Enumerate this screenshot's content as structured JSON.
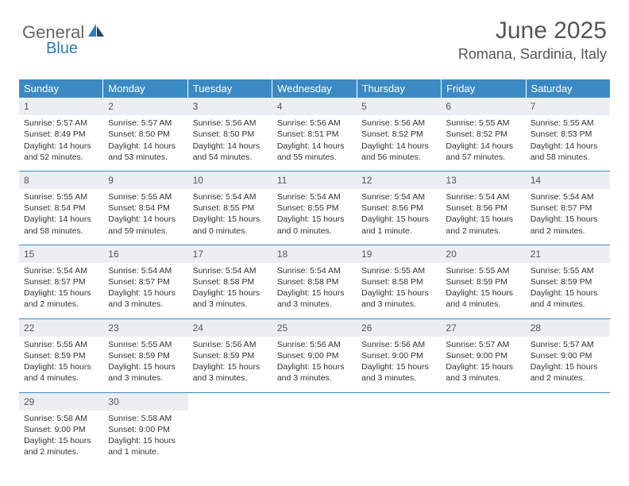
{
  "logo": {
    "text1": "General",
    "text2": "Blue"
  },
  "title": {
    "month": "June 2025",
    "location": "Romana, Sardinia, Italy"
  },
  "colors": {
    "header_bg": "#3b8ac4",
    "header_fg": "#ffffff",
    "daynum_bg": "#eceff1",
    "rule": "#3b8ac4",
    "text": "#333333",
    "title": "#555555",
    "logo_gray": "#666666",
    "logo_blue": "#2d7dbd"
  },
  "day_headers": [
    "Sunday",
    "Monday",
    "Tuesday",
    "Wednesday",
    "Thursday",
    "Friday",
    "Saturday"
  ],
  "days": [
    {
      "n": "1",
      "sr": "Sunrise: 5:57 AM",
      "ss": "Sunset: 8:49 PM",
      "d1": "Daylight: 14 hours",
      "d2": "and 52 minutes."
    },
    {
      "n": "2",
      "sr": "Sunrise: 5:57 AM",
      "ss": "Sunset: 8:50 PM",
      "d1": "Daylight: 14 hours",
      "d2": "and 53 minutes."
    },
    {
      "n": "3",
      "sr": "Sunrise: 5:56 AM",
      "ss": "Sunset: 8:50 PM",
      "d1": "Daylight: 14 hours",
      "d2": "and 54 minutes."
    },
    {
      "n": "4",
      "sr": "Sunrise: 5:56 AM",
      "ss": "Sunset: 8:51 PM",
      "d1": "Daylight: 14 hours",
      "d2": "and 55 minutes."
    },
    {
      "n": "5",
      "sr": "Sunrise: 5:56 AM",
      "ss": "Sunset: 8:52 PM",
      "d1": "Daylight: 14 hours",
      "d2": "and 56 minutes."
    },
    {
      "n": "6",
      "sr": "Sunrise: 5:55 AM",
      "ss": "Sunset: 8:52 PM",
      "d1": "Daylight: 14 hours",
      "d2": "and 57 minutes."
    },
    {
      "n": "7",
      "sr": "Sunrise: 5:55 AM",
      "ss": "Sunset: 8:53 PM",
      "d1": "Daylight: 14 hours",
      "d2": "and 58 minutes."
    },
    {
      "n": "8",
      "sr": "Sunrise: 5:55 AM",
      "ss": "Sunset: 8:54 PM",
      "d1": "Daylight: 14 hours",
      "d2": "and 58 minutes."
    },
    {
      "n": "9",
      "sr": "Sunrise: 5:55 AM",
      "ss": "Sunset: 8:54 PM",
      "d1": "Daylight: 14 hours",
      "d2": "and 59 minutes."
    },
    {
      "n": "10",
      "sr": "Sunrise: 5:54 AM",
      "ss": "Sunset: 8:55 PM",
      "d1": "Daylight: 15 hours",
      "d2": "and 0 minutes."
    },
    {
      "n": "11",
      "sr": "Sunrise: 5:54 AM",
      "ss": "Sunset: 8:55 PM",
      "d1": "Daylight: 15 hours",
      "d2": "and 0 minutes."
    },
    {
      "n": "12",
      "sr": "Sunrise: 5:54 AM",
      "ss": "Sunset: 8:56 PM",
      "d1": "Daylight: 15 hours",
      "d2": "and 1 minute."
    },
    {
      "n": "13",
      "sr": "Sunrise: 5:54 AM",
      "ss": "Sunset: 8:56 PM",
      "d1": "Daylight: 15 hours",
      "d2": "and 2 minutes."
    },
    {
      "n": "14",
      "sr": "Sunrise: 5:54 AM",
      "ss": "Sunset: 8:57 PM",
      "d1": "Daylight: 15 hours",
      "d2": "and 2 minutes."
    },
    {
      "n": "15",
      "sr": "Sunrise: 5:54 AM",
      "ss": "Sunset: 8:57 PM",
      "d1": "Daylight: 15 hours",
      "d2": "and 2 minutes."
    },
    {
      "n": "16",
      "sr": "Sunrise: 5:54 AM",
      "ss": "Sunset: 8:57 PM",
      "d1": "Daylight: 15 hours",
      "d2": "and 3 minutes."
    },
    {
      "n": "17",
      "sr": "Sunrise: 5:54 AM",
      "ss": "Sunset: 8:58 PM",
      "d1": "Daylight: 15 hours",
      "d2": "and 3 minutes."
    },
    {
      "n": "18",
      "sr": "Sunrise: 5:54 AM",
      "ss": "Sunset: 8:58 PM",
      "d1": "Daylight: 15 hours",
      "d2": "and 3 minutes."
    },
    {
      "n": "19",
      "sr": "Sunrise: 5:55 AM",
      "ss": "Sunset: 8:58 PM",
      "d1": "Daylight: 15 hours",
      "d2": "and 3 minutes."
    },
    {
      "n": "20",
      "sr": "Sunrise: 5:55 AM",
      "ss": "Sunset: 8:59 PM",
      "d1": "Daylight: 15 hours",
      "d2": "and 4 minutes."
    },
    {
      "n": "21",
      "sr": "Sunrise: 5:55 AM",
      "ss": "Sunset: 8:59 PM",
      "d1": "Daylight: 15 hours",
      "d2": "and 4 minutes."
    },
    {
      "n": "22",
      "sr": "Sunrise: 5:55 AM",
      "ss": "Sunset: 8:59 PM",
      "d1": "Daylight: 15 hours",
      "d2": "and 4 minutes."
    },
    {
      "n": "23",
      "sr": "Sunrise: 5:55 AM",
      "ss": "Sunset: 8:59 PM",
      "d1": "Daylight: 15 hours",
      "d2": "and 3 minutes."
    },
    {
      "n": "24",
      "sr": "Sunrise: 5:56 AM",
      "ss": "Sunset: 8:59 PM",
      "d1": "Daylight: 15 hours",
      "d2": "and 3 minutes."
    },
    {
      "n": "25",
      "sr": "Sunrise: 5:56 AM",
      "ss": "Sunset: 9:00 PM",
      "d1": "Daylight: 15 hours",
      "d2": "and 3 minutes."
    },
    {
      "n": "26",
      "sr": "Sunrise: 5:56 AM",
      "ss": "Sunset: 9:00 PM",
      "d1": "Daylight: 15 hours",
      "d2": "and 3 minutes."
    },
    {
      "n": "27",
      "sr": "Sunrise: 5:57 AM",
      "ss": "Sunset: 9:00 PM",
      "d1": "Daylight: 15 hours",
      "d2": "and 3 minutes."
    },
    {
      "n": "28",
      "sr": "Sunrise: 5:57 AM",
      "ss": "Sunset: 9:00 PM",
      "d1": "Daylight: 15 hours",
      "d2": "and 2 minutes."
    },
    {
      "n": "29",
      "sr": "Sunrise: 5:58 AM",
      "ss": "Sunset: 9:00 PM",
      "d1": "Daylight: 15 hours",
      "d2": "and 2 minutes."
    },
    {
      "n": "30",
      "sr": "Sunrise: 5:58 AM",
      "ss": "Sunset: 9:00 PM",
      "d1": "Daylight: 15 hours",
      "d2": "and 1 minute."
    }
  ]
}
